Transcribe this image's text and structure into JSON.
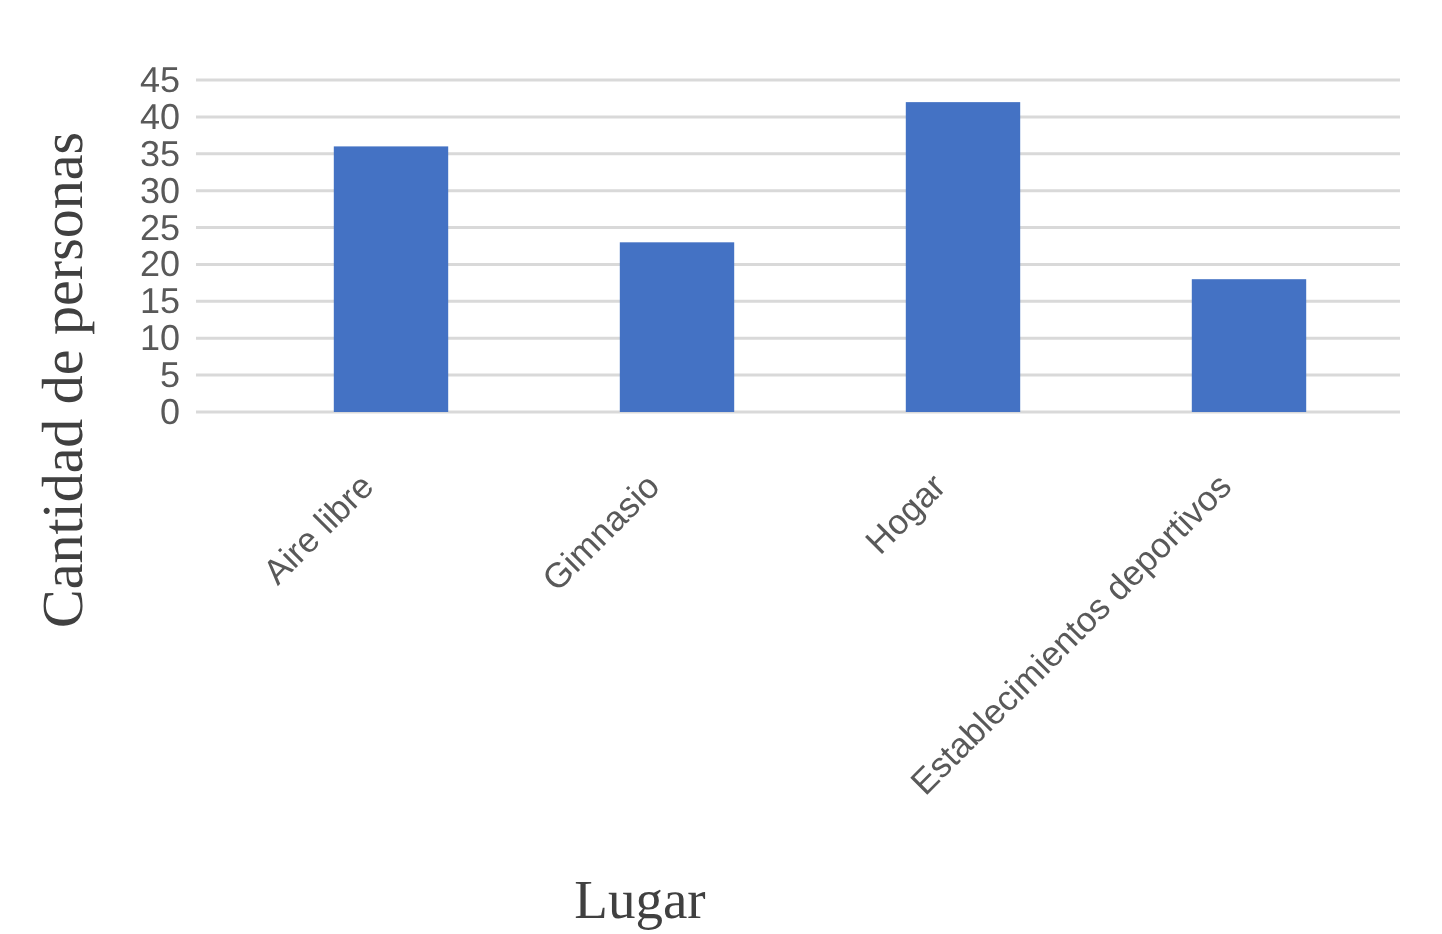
{
  "chart_data": {
    "type": "bar",
    "categories": [
      "Aire libre",
      "Gimnasio",
      "Hogar",
      "Establecimientos deportivos"
    ],
    "values": [
      36,
      23,
      42,
      18
    ],
    "color": "#4472c4",
    "xlabel": "Lugar",
    "ylabel": "Cantidad de personas",
    "ylim": [
      0,
      45
    ],
    "yticks": [
      0,
      5,
      10,
      15,
      20,
      25,
      30,
      35,
      40,
      45
    ],
    "grid": "y"
  }
}
